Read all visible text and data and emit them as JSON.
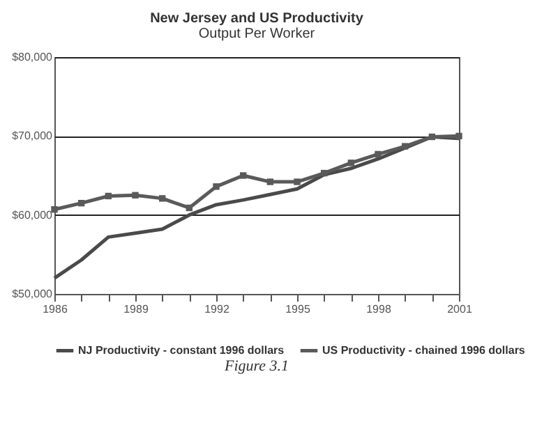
{
  "chart_data": {
    "type": "line",
    "title": "New Jersey and US Productivity",
    "subtitle": "Output Per Worker",
    "x": [
      1986,
      1987,
      1988,
      1989,
      1990,
      1991,
      1992,
      1993,
      1994,
      1995,
      1996,
      1997,
      1998,
      1999,
      2000,
      2001
    ],
    "series": [
      {
        "name": "NJ Productivity - constant 1996 dollars",
        "color": "#4a4a4a",
        "marker": "none",
        "values": [
          52000,
          54300,
          57200,
          57700,
          58200,
          60000,
          61300,
          61900,
          62600,
          63300,
          65100,
          65900,
          67100,
          68500,
          69900,
          69700
        ]
      },
      {
        "name": "US Productivity - chained 1996 dollars",
        "color": "#5a5a5a",
        "marker": "square",
        "values": [
          60700,
          61500,
          62400,
          62500,
          62100,
          60900,
          63600,
          65000,
          64200,
          64200,
          65300,
          66600,
          67700,
          68700,
          69900,
          70000
        ]
      }
    ],
    "xlim": [
      1986,
      2001
    ],
    "xticks": [
      1986,
      {
        "value": 1987,
        "label": null
      },
      {
        "value": 1988,
        "label": null
      },
      1989,
      {
        "value": 1990,
        "label": null
      },
      {
        "value": 1991,
        "label": null
      },
      1992,
      {
        "value": 1993,
        "label": null
      },
      {
        "value": 1994,
        "label": null
      },
      1995,
      {
        "value": 1996,
        "label": null
      },
      {
        "value": 1997,
        "label": null
      },
      1998,
      {
        "value": 1999,
        "label": null
      },
      {
        "value": 2000,
        "label": null
      },
      2001
    ],
    "ylim": [
      50000,
      80000
    ],
    "yticks": [
      {
        "value": 50000,
        "label": "$50,000"
      },
      {
        "value": 60000,
        "label": "$60,000"
      },
      {
        "value": 70000,
        "label": "$70,000"
      },
      {
        "value": 80000,
        "label": "$80,000"
      }
    ],
    "grid": "y",
    "legend": "bottom",
    "line_style": "solid",
    "annotations": [
      "Figure 3.1"
    ]
  }
}
